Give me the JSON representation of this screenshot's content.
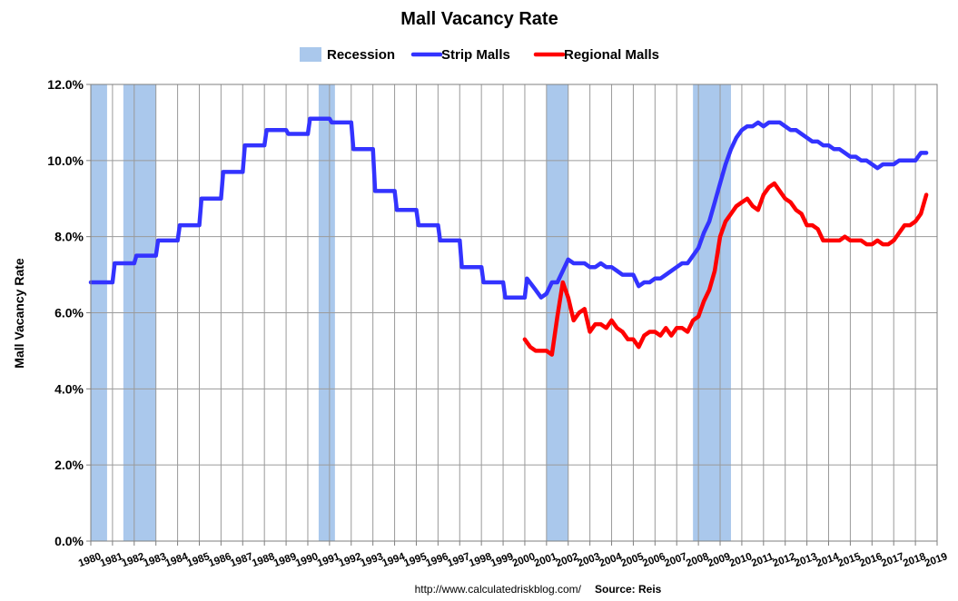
{
  "chart_data": {
    "type": "line",
    "title": "Mall Vacancy Rate",
    "ylabel": "Mall Vacancy Rate",
    "xlabel": "",
    "ylim": [
      0,
      12
    ],
    "xlim": [
      1980,
      2019
    ],
    "y_ticks": [
      "0.0%",
      "2.0%",
      "4.0%",
      "6.0%",
      "8.0%",
      "10.0%",
      "12.0%"
    ],
    "x_ticks": [
      "1980",
      "1981",
      "1982",
      "1983",
      "1984",
      "1985",
      "1986",
      "1987",
      "1988",
      "1989",
      "1990",
      "1991",
      "1992",
      "1993",
      "1994",
      "1995",
      "1996",
      "1997",
      "1998",
      "1999",
      "2000",
      "2001",
      "2002",
      "2003",
      "2004",
      "2005",
      "2006",
      "2007",
      "2008",
      "2009",
      "2010",
      "2011",
      "2012",
      "2013",
      "2014",
      "2015",
      "2016",
      "2017",
      "2018",
      "2019"
    ],
    "grid": true,
    "legend_position": "top-center",
    "legend": [
      "Recession",
      "Strip Malls",
      "Regional Malls"
    ],
    "recessions": [
      [
        1980.0,
        1980.75
      ],
      [
        1981.5,
        1983.0
      ],
      [
        1990.5,
        1991.25
      ],
      [
        2001.0,
        2002.0
      ],
      [
        2007.75,
        2009.5
      ]
    ],
    "recession_color": "#aac8ec",
    "series": [
      {
        "name": "Strip Malls",
        "color": "#3333ff",
        "points": [
          [
            1980.0,
            6.8
          ],
          [
            1981.0,
            6.8
          ],
          [
            1981.1,
            7.3
          ],
          [
            1982.0,
            7.3
          ],
          [
            1982.1,
            7.5
          ],
          [
            1983.0,
            7.5
          ],
          [
            1983.1,
            7.9
          ],
          [
            1984.0,
            7.9
          ],
          [
            1984.1,
            8.3
          ],
          [
            1985.0,
            8.3
          ],
          [
            1985.1,
            9.0
          ],
          [
            1986.0,
            9.0
          ],
          [
            1986.1,
            9.7
          ],
          [
            1987.0,
            9.7
          ],
          [
            1987.1,
            10.4
          ],
          [
            1988.0,
            10.4
          ],
          [
            1988.1,
            10.8
          ],
          [
            1989.0,
            10.8
          ],
          [
            1989.1,
            10.7
          ],
          [
            1990.0,
            10.7
          ],
          [
            1990.1,
            11.1
          ],
          [
            1991.0,
            11.1
          ],
          [
            1991.1,
            11.0
          ],
          [
            1992.0,
            11.0
          ],
          [
            1992.1,
            10.3
          ],
          [
            1993.0,
            10.3
          ],
          [
            1993.1,
            9.2
          ],
          [
            1994.0,
            9.2
          ],
          [
            1994.1,
            8.7
          ],
          [
            1995.0,
            8.7
          ],
          [
            1995.1,
            8.3
          ],
          [
            1996.0,
            8.3
          ],
          [
            1996.1,
            7.9
          ],
          [
            1997.0,
            7.9
          ],
          [
            1997.1,
            7.2
          ],
          [
            1998.0,
            7.2
          ],
          [
            1998.1,
            6.8
          ],
          [
            1999.0,
            6.8
          ],
          [
            1999.1,
            6.4
          ],
          [
            2000.0,
            6.4
          ],
          [
            2000.1,
            6.9
          ],
          [
            2000.5,
            6.6
          ],
          [
            2000.75,
            6.4
          ],
          [
            2001.0,
            6.5
          ],
          [
            2001.25,
            6.8
          ],
          [
            2001.5,
            6.8
          ],
          [
            2001.75,
            7.1
          ],
          [
            2002.0,
            7.4
          ],
          [
            2002.25,
            7.3
          ],
          [
            2002.5,
            7.3
          ],
          [
            2002.75,
            7.3
          ],
          [
            2003.0,
            7.2
          ],
          [
            2003.25,
            7.2
          ],
          [
            2003.5,
            7.3
          ],
          [
            2003.75,
            7.2
          ],
          [
            2004.0,
            7.2
          ],
          [
            2004.25,
            7.1
          ],
          [
            2004.5,
            7.0
          ],
          [
            2004.75,
            7.0
          ],
          [
            2005.0,
            7.0
          ],
          [
            2005.25,
            6.7
          ],
          [
            2005.5,
            6.8
          ],
          [
            2005.75,
            6.8
          ],
          [
            2006.0,
            6.9
          ],
          [
            2006.25,
            6.9
          ],
          [
            2006.5,
            7.0
          ],
          [
            2006.75,
            7.1
          ],
          [
            2007.0,
            7.2
          ],
          [
            2007.25,
            7.3
          ],
          [
            2007.5,
            7.3
          ],
          [
            2007.75,
            7.5
          ],
          [
            2008.0,
            7.7
          ],
          [
            2008.25,
            8.1
          ],
          [
            2008.5,
            8.4
          ],
          [
            2008.75,
            8.9
          ],
          [
            2009.0,
            9.4
          ],
          [
            2009.25,
            9.9
          ],
          [
            2009.5,
            10.3
          ],
          [
            2009.75,
            10.6
          ],
          [
            2010.0,
            10.8
          ],
          [
            2010.25,
            10.9
          ],
          [
            2010.5,
            10.9
          ],
          [
            2010.75,
            11.0
          ],
          [
            2011.0,
            10.9
          ],
          [
            2011.25,
            11.0
          ],
          [
            2011.5,
            11.0
          ],
          [
            2011.75,
            11.0
          ],
          [
            2012.0,
            10.9
          ],
          [
            2012.25,
            10.8
          ],
          [
            2012.5,
            10.8
          ],
          [
            2012.75,
            10.7
          ],
          [
            2013.0,
            10.6
          ],
          [
            2013.25,
            10.5
          ],
          [
            2013.5,
            10.5
          ],
          [
            2013.75,
            10.4
          ],
          [
            2014.0,
            10.4
          ],
          [
            2014.25,
            10.3
          ],
          [
            2014.5,
            10.3
          ],
          [
            2014.75,
            10.2
          ],
          [
            2015.0,
            10.1
          ],
          [
            2015.25,
            10.1
          ],
          [
            2015.5,
            10.0
          ],
          [
            2015.75,
            10.0
          ],
          [
            2016.0,
            9.9
          ],
          [
            2016.25,
            9.8
          ],
          [
            2016.5,
            9.9
          ],
          [
            2016.75,
            9.9
          ],
          [
            2017.0,
            9.9
          ],
          [
            2017.25,
            10.0
          ],
          [
            2017.5,
            10.0
          ],
          [
            2017.75,
            10.0
          ],
          [
            2018.0,
            10.0
          ],
          [
            2018.25,
            10.2
          ],
          [
            2018.5,
            10.2
          ]
        ]
      },
      {
        "name": "Regional Malls",
        "color": "#ff0000",
        "points": [
          [
            2000.0,
            5.3
          ],
          [
            2000.25,
            5.1
          ],
          [
            2000.5,
            5.0
          ],
          [
            2000.75,
            5.0
          ],
          [
            2001.0,
            5.0
          ],
          [
            2001.25,
            4.9
          ],
          [
            2001.5,
            5.9
          ],
          [
            2001.75,
            6.8
          ],
          [
            2002.0,
            6.4
          ],
          [
            2002.25,
            5.8
          ],
          [
            2002.5,
            6.0
          ],
          [
            2002.75,
            6.1
          ],
          [
            2003.0,
            5.5
          ],
          [
            2003.25,
            5.7
          ],
          [
            2003.5,
            5.7
          ],
          [
            2003.75,
            5.6
          ],
          [
            2004.0,
            5.8
          ],
          [
            2004.25,
            5.6
          ],
          [
            2004.5,
            5.5
          ],
          [
            2004.75,
            5.3
          ],
          [
            2005.0,
            5.3
          ],
          [
            2005.25,
            5.1
          ],
          [
            2005.5,
            5.4
          ],
          [
            2005.75,
            5.5
          ],
          [
            2006.0,
            5.5
          ],
          [
            2006.25,
            5.4
          ],
          [
            2006.5,
            5.6
          ],
          [
            2006.75,
            5.4
          ],
          [
            2007.0,
            5.6
          ],
          [
            2007.25,
            5.6
          ],
          [
            2007.5,
            5.5
          ],
          [
            2007.75,
            5.8
          ],
          [
            2008.0,
            5.9
          ],
          [
            2008.25,
            6.3
          ],
          [
            2008.5,
            6.6
          ],
          [
            2008.75,
            7.1
          ],
          [
            2009.0,
            8.0
          ],
          [
            2009.25,
            8.4
          ],
          [
            2009.5,
            8.6
          ],
          [
            2009.75,
            8.8
          ],
          [
            2010.0,
            8.9
          ],
          [
            2010.25,
            9.0
          ],
          [
            2010.5,
            8.8
          ],
          [
            2010.75,
            8.7
          ],
          [
            2011.0,
            9.1
          ],
          [
            2011.25,
            9.3
          ],
          [
            2011.5,
            9.4
          ],
          [
            2011.75,
            9.2
          ],
          [
            2012.0,
            9.0
          ],
          [
            2012.25,
            8.9
          ],
          [
            2012.5,
            8.7
          ],
          [
            2012.75,
            8.6
          ],
          [
            2013.0,
            8.3
          ],
          [
            2013.25,
            8.3
          ],
          [
            2013.5,
            8.2
          ],
          [
            2013.75,
            7.9
          ],
          [
            2014.0,
            7.9
          ],
          [
            2014.25,
            7.9
          ],
          [
            2014.5,
            7.9
          ],
          [
            2014.75,
            8.0
          ],
          [
            2015.0,
            7.9
          ],
          [
            2015.25,
            7.9
          ],
          [
            2015.5,
            7.9
          ],
          [
            2015.75,
            7.8
          ],
          [
            2016.0,
            7.8
          ],
          [
            2016.25,
            7.9
          ],
          [
            2016.5,
            7.8
          ],
          [
            2016.75,
            7.8
          ],
          [
            2017.0,
            7.9
          ],
          [
            2017.25,
            8.1
          ],
          [
            2017.5,
            8.3
          ],
          [
            2017.75,
            8.3
          ],
          [
            2018.0,
            8.4
          ],
          [
            2018.25,
            8.6
          ],
          [
            2018.5,
            9.1
          ]
        ]
      }
    ]
  },
  "footer": {
    "url": "http://www.calculatedriskblog.com/",
    "source": "Source: Reis"
  }
}
